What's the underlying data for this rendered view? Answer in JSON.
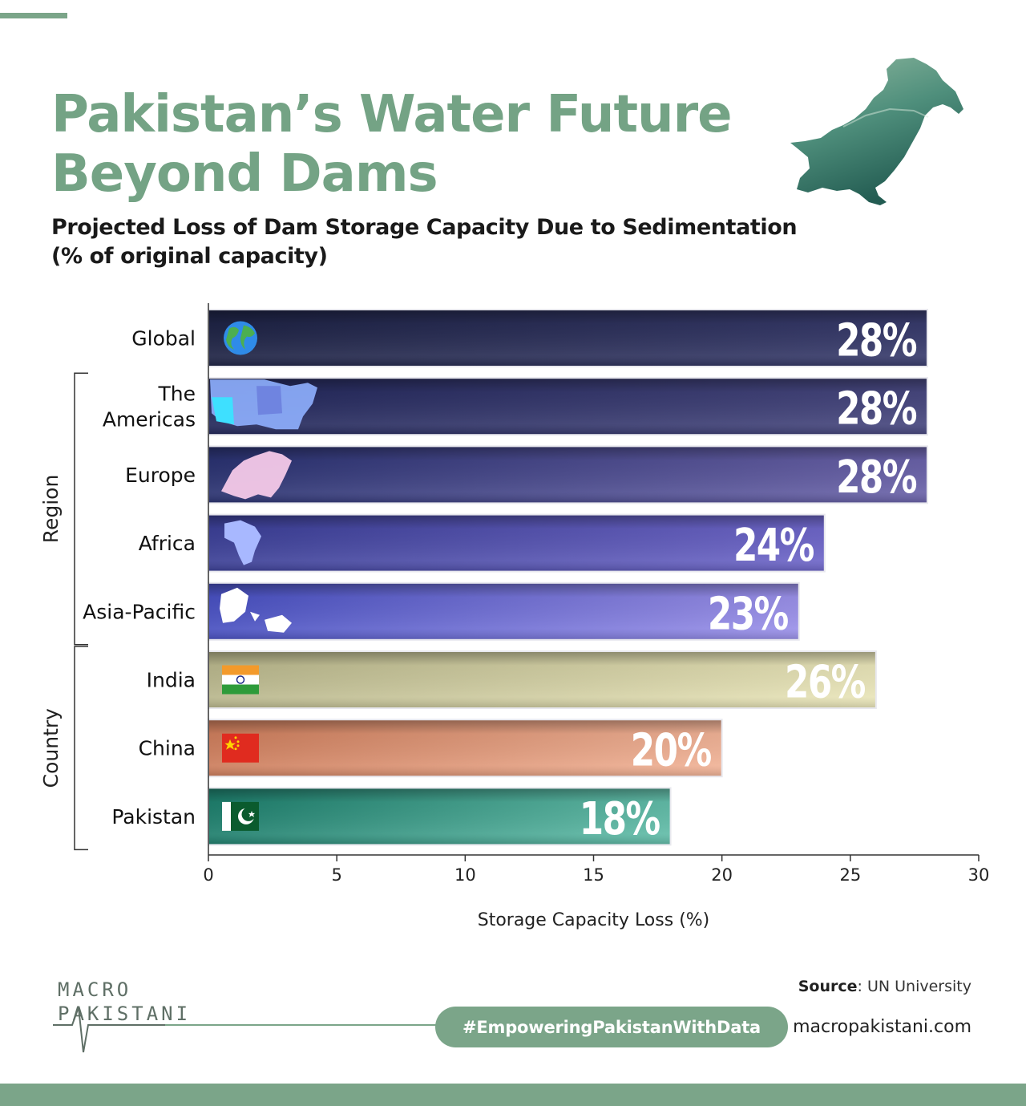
{
  "header": {
    "title_line1": "Pakistan’s Water Future",
    "title_line2": "Beyond Dams",
    "subtitle_line1": "Projected Loss of Dam Storage Capacity Due to Sedimentation",
    "subtitle_line2": "(% of original capacity)"
  },
  "colors": {
    "brand_green": "#7ba589",
    "title_green": "#74a385",
    "map_dark": "#2f6e62",
    "map_light": "#8fb89f"
  },
  "chart_data": {
    "type": "bar",
    "orientation": "horizontal",
    "categories": [
      "Global",
      "The Americas",
      "Europe",
      "Africa",
      "Asia-Pacific",
      "India",
      "China",
      "Pakistan"
    ],
    "values": [
      28,
      28,
      28,
      24,
      23,
      26,
      20,
      18
    ],
    "value_labels": [
      "28%",
      "28%",
      "28%",
      "24%",
      "23%",
      "26%",
      "20%",
      "18%"
    ],
    "icons": [
      "globe-icon",
      "americas-map-icon",
      "europe-map-icon",
      "africa-map-icon",
      "asia-pacific-map-icon",
      "india-flag-icon",
      "china-flag-icon",
      "pakistan-flag-icon"
    ],
    "bar_colors": [
      [
        "#1e2344",
        "#383b6c"
      ],
      [
        "#23285a",
        "#47477e"
      ],
      [
        "#2a3270",
        "#6a62a8"
      ],
      [
        "#3b3f95",
        "#6e66c8"
      ],
      [
        "#4850c0",
        "#9a90e8"
      ],
      [
        "#b8b68c",
        "#e8e4b8"
      ],
      [
        "#cc7d5c",
        "#f0b296"
      ],
      [
        "#1e7e6c",
        "#62bca8"
      ]
    ],
    "groups": [
      {
        "label": "Region",
        "categories": [
          "The Americas",
          "Europe",
          "Africa",
          "Asia-Pacific"
        ]
      },
      {
        "label": "Country",
        "categories": [
          "India",
          "China",
          "Pakistan"
        ]
      }
    ],
    "xlabel": "Storage Capacity Loss (%)",
    "xlim": [
      0,
      30
    ],
    "xticks": [
      0,
      5,
      10,
      15,
      20,
      25,
      30
    ],
    "grid": false
  },
  "footer": {
    "brand_line1": "MACRO",
    "brand_line2": "PAKISTANI",
    "hashtag": "#EmpoweringPakistanWithData",
    "source_label": "Source",
    "source_value": ": UN University",
    "website": "macropakistani.com"
  }
}
